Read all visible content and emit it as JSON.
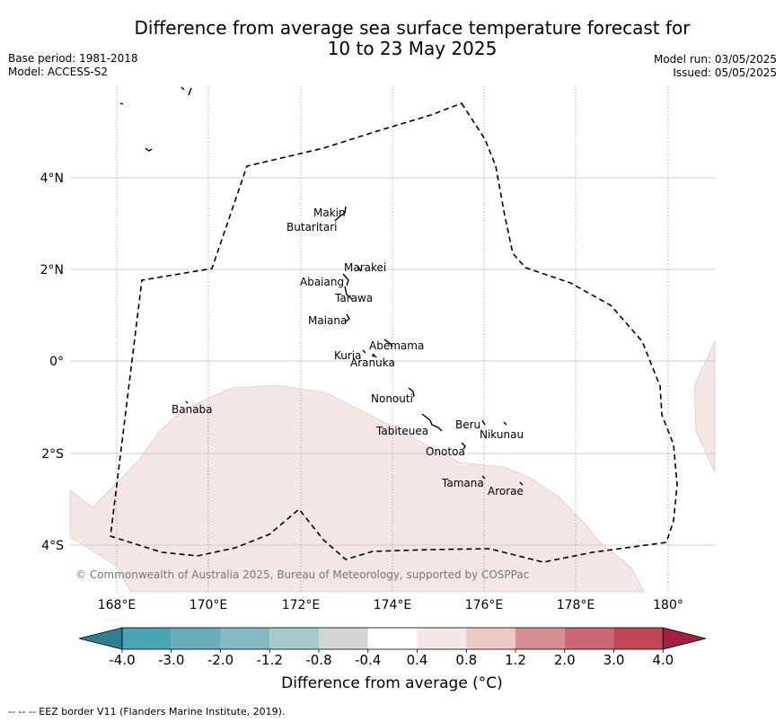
{
  "title_line1": "Difference from average sea surface temperature forecast for",
  "title_line2": "10 to 23 May 2025",
  "base_period": "Base period: 1981-2018",
  "model": "Model: ACCESS-S2",
  "model_run": "Model run: 03/05/2025",
  "issued": "Issued: 05/05/2025",
  "copyright": "© Commonwealth of Australia 2025, Bureau of Meteorology, supported by COSPPac",
  "lon_labels": [
    "168°E",
    "170°E",
    "172°E",
    "174°E",
    "176°E",
    "178°E",
    "180°"
  ],
  "lat_labels": [
    "4°N",
    "2°N",
    "0°",
    "2°S",
    "4°S"
  ],
  "islands": [
    "Makin",
    "Butaritari",
    "Marakei",
    "Abaiang",
    "Tarawa",
    "Maiana",
    "Abemama",
    "Kuria",
    "Aranuka",
    "Nonouti",
    "Tabiteuea",
    "Beru",
    "Nikunau",
    "Onotoa",
    "Tamana",
    "Arorae",
    "Banaba"
  ],
  "colorbar": {
    "ticks": [
      "-4.0",
      "-3.0",
      "-2.0",
      "-1.2",
      "-0.8",
      "-0.4",
      "0.4",
      "0.8",
      "1.2",
      "2.0",
      "3.0",
      "4.0"
    ],
    "colors": [
      "#2e7f8f",
      "#48a3b2",
      "#68adb8",
      "#86b8c1",
      "#a7c9cc",
      "#d1d5d5",
      "#ffffff",
      "#f5e7e6",
      "#ecc8c6",
      "#d88e95",
      "#cd6772",
      "#c24756",
      "#a81e3f"
    ],
    "label": "Difference from average (°C)"
  },
  "footnote": "--  --  -- EEZ border V11 (Flanders Marine Institute, 2019)."
}
